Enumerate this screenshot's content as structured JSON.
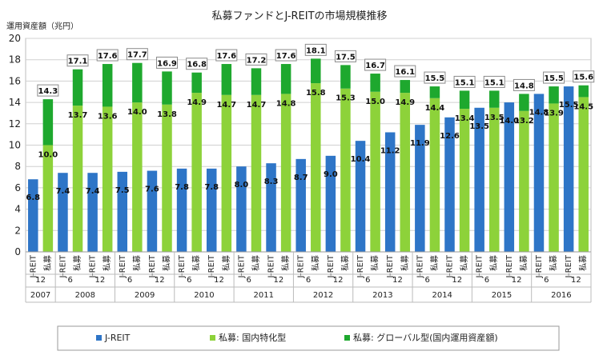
{
  "chart_data": {
    "type": "bar",
    "title": "私募ファンドとJ-REITの市場規模推移",
    "ylabel": "運用資産額（兆円）",
    "ylim": [
      0,
      20
    ],
    "yticks": [
      0,
      2,
      4,
      6,
      8,
      10,
      12,
      14,
      16,
      18,
      20
    ],
    "bar_type_labels": [
      "J-REIT",
      "私募"
    ],
    "periods": [
      {
        "year": "2007",
        "months": [
          "12"
        ]
      },
      {
        "year": "2008",
        "months": [
          "6",
          "12"
        ]
      },
      {
        "year": "2009",
        "months": [
          "6",
          "12"
        ]
      },
      {
        "year": "2010",
        "months": [
          "6",
          "12"
        ]
      },
      {
        "year": "2011",
        "months": [
          "6",
          "12"
        ]
      },
      {
        "year": "2012",
        "months": [
          "6",
          "12"
        ]
      },
      {
        "year": "2013",
        "months": [
          "6",
          "12"
        ]
      },
      {
        "year": "2014",
        "months": [
          "6",
          "12"
        ]
      },
      {
        "year": "2015",
        "months": [
          "6",
          "12"
        ]
      },
      {
        "year": "2016",
        "months": [
          "6",
          "12"
        ]
      }
    ],
    "series": [
      {
        "name": "J-REIT",
        "color": "#2e75c7",
        "values": [
          6.8,
          7.4,
          7.4,
          7.5,
          7.6,
          7.8,
          7.8,
          8.0,
          8.3,
          8.7,
          9.0,
          10.4,
          11.2,
          11.9,
          12.6,
          13.5,
          14.0,
          14.8,
          15.5
        ]
      },
      {
        "name": "私募: 国内特化型",
        "color": "#8dd23a",
        "values": [
          10.0,
          13.7,
          13.6,
          14.0,
          13.8,
          14.9,
          14.7,
          14.7,
          14.8,
          15.8,
          15.3,
          15.0,
          14.9,
          14.4,
          13.4,
          13.5,
          13.2,
          13.9,
          14.5
        ]
      },
      {
        "name": "私募: グローバル型(国内運用資産額)",
        "color": "#1ea82e",
        "values": [
          4.3,
          3.4,
          4.0,
          3.7,
          3.1,
          1.9,
          2.9,
          2.5,
          2.8,
          2.3,
          2.2,
          1.7,
          1.2,
          1.1,
          1.7,
          1.6,
          1.6,
          1.6,
          1.1
        ]
      }
    ],
    "private_totals": [
      14.3,
      17.1,
      17.6,
      17.7,
      16.9,
      16.8,
      17.6,
      17.2,
      17.6,
      18.1,
      17.5,
      16.7,
      16.1,
      15.5,
      15.1,
      15.1,
      14.8,
      15.5,
      15.6
    ],
    "legend": [
      "J-REIT",
      "私募: 国内特化型",
      "私募: グローバル型(国内運用資産額)"
    ],
    "legend_position": "bottom",
    "grid": true
  }
}
